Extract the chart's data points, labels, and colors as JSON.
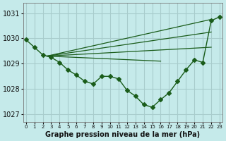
{
  "xlabel": "Graphe pression niveau de la mer (hPa)",
  "ylim": [
    1026.7,
    1031.4
  ],
  "xlim": [
    -0.3,
    23.3
  ],
  "yticks": [
    1027,
    1028,
    1029,
    1030,
    1031
  ],
  "xtick_labels": [
    "0",
    "1",
    "2",
    "3",
    "4",
    "5",
    "6",
    "7",
    "8",
    "9",
    "10",
    "11",
    "12",
    "13",
    "14",
    "15",
    "16",
    "17",
    "18",
    "19",
    "20",
    "21",
    "22",
    "23"
  ],
  "bg_color": "#c5eaea",
  "grid_color": "#a8cccc",
  "line_color": "#1a5c1a",
  "main_line": {
    "x": [
      0,
      1,
      2,
      3,
      4,
      5,
      6,
      7,
      8,
      9,
      10,
      11,
      12,
      13,
      14,
      15,
      16,
      17,
      18,
      19,
      20,
      21,
      22,
      23
    ],
    "y": [
      1029.95,
      1029.65,
      1029.35,
      1029.25,
      1029.05,
      1028.75,
      1028.55,
      1028.3,
      1028.2,
      1028.5,
      1028.5,
      1028.4,
      1027.95,
      1027.72,
      1027.38,
      1027.28,
      1027.58,
      1027.85,
      1028.3,
      1028.75,
      1029.15,
      1029.05,
      1030.7,
      1030.85
    ]
  },
  "straight_lines": [
    {
      "x0": 2.5,
      "y0": 1029.3,
      "x1": 22.0,
      "y1": 1030.75
    },
    {
      "x0": 2.5,
      "y0": 1029.3,
      "x1": 22.0,
      "y1": 1030.25
    },
    {
      "x0": 2.5,
      "y0": 1029.3,
      "x1": 22.0,
      "y1": 1029.65
    },
    {
      "x0": 2.5,
      "y0": 1029.3,
      "x1": 16.0,
      "y1": 1029.1
    }
  ]
}
